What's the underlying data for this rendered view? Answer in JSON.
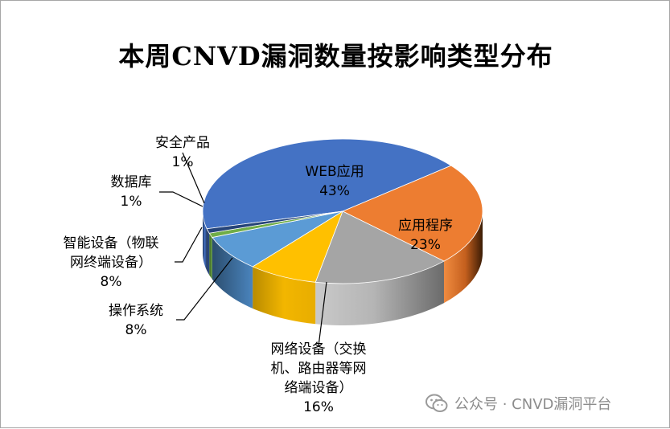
{
  "chart_data": {
    "type": "pie",
    "title": "本周CNVD漏洞数量按影响类型分布",
    "slices": [
      {
        "name": "WEB应用",
        "value": 43,
        "label": "43%",
        "color": "#4472c4"
      },
      {
        "name": "应用程序",
        "value": 23,
        "label": "23%",
        "color": "#ed7d31"
      },
      {
        "name": "网络设备（交换机、路由器等网络端设备）",
        "value": 16,
        "label": "16%",
        "color": "#a5a5a5"
      },
      {
        "name": "操作系统",
        "value": 8,
        "label": "8%",
        "color": "#ffc000"
      },
      {
        "name": "智能设备（物联网终端设备）",
        "value": 8,
        "label": "8%",
        "color": "#5b9bd5"
      },
      {
        "name": "数据库",
        "value": 1,
        "label": "1%",
        "color": "#70ad47"
      },
      {
        "name": "安全产品",
        "value": 1,
        "label": "1%",
        "color": "#264478"
      }
    ]
  },
  "labels": {
    "web": {
      "line1": "WEB应用",
      "pct": "43%"
    },
    "app": {
      "line1": "应用程序",
      "pct": "23%"
    },
    "net": {
      "line1": "网络设备（交换",
      "line2": "机、路由器等网",
      "line3": "络端设备）",
      "pct": "16%"
    },
    "os": {
      "line1": "操作系统",
      "pct": "8%"
    },
    "iot": {
      "line1": "智能设备（物联",
      "line2": "网终端设备）",
      "pct": "8%"
    },
    "db": {
      "line1": "数据库",
      "pct": "1%"
    },
    "sec": {
      "line1": "安全产品",
      "pct": "1%"
    }
  },
  "watermark": {
    "text": "公众号 · CNVD漏洞平台",
    "icon": "wechat-icon"
  }
}
